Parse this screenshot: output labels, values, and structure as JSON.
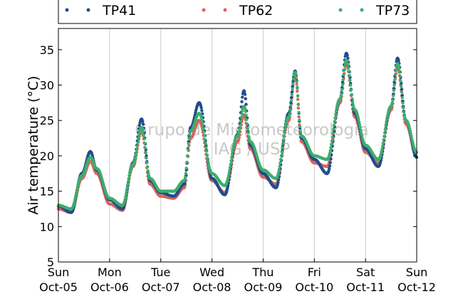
{
  "chart_data": {
    "type": "scatter",
    "title": "",
    "xlabel": "",
    "ylabel": "Air temperature (°C)",
    "ylim": [
      5,
      38
    ],
    "yticks": [
      5,
      10,
      15,
      20,
      25,
      30,
      35
    ],
    "xlim": [
      "2014-10-05T00:00",
      "2014-10-12T00:00"
    ],
    "xticks": [
      {
        "day": "Sun",
        "date": "Oct-05"
      },
      {
        "day": "Mon",
        "date": "Oct-06"
      },
      {
        "day": "Tue",
        "date": "Oct-07"
      },
      {
        "day": "Wed",
        "date": "Oct-08"
      },
      {
        "day": "Thu",
        "date": "Oct-09"
      },
      {
        "day": "Fri",
        "date": "Oct-10"
      },
      {
        "day": "Sat",
        "date": "Oct-11"
      },
      {
        "day": "Sun",
        "date": "Oct-12"
      }
    ],
    "grid": "vertical",
    "legend_placement": "top",
    "watermark": [
      "Grupo de Micrometeorologia",
      "IAG / USP"
    ],
    "series": [
      {
        "name": "TP41",
        "color": "#1f4e8c",
        "x": [
          "2014-10-05T00:00",
          "2014-10-05T06:00",
          "2014-10-05T11:00",
          "2014-10-05T15:00",
          "2014-10-05T18:00",
          "2014-10-06T00:00",
          "2014-10-06T06:00",
          "2014-10-06T11:00",
          "2014-10-06T15:00",
          "2014-10-06T19:00",
          "2014-10-07T00:00",
          "2014-10-07T06:00",
          "2014-10-07T11:00",
          "2014-10-07T14:00",
          "2014-10-07T18:00",
          "2014-10-08T00:00",
          "2014-10-08T06:00",
          "2014-10-08T12:00",
          "2014-10-08T15:00",
          "2014-10-08T18:00",
          "2014-10-09T00:00",
          "2014-10-09T06:00",
          "2014-10-09T12:00",
          "2014-10-09T15:00",
          "2014-10-09T18:00",
          "2014-10-10T00:00",
          "2014-10-10T06:00",
          "2014-10-10T12:00",
          "2014-10-10T15:00",
          "2014-10-10T19:00",
          "2014-10-11T00:00",
          "2014-10-11T06:00",
          "2014-10-11T12:00",
          "2014-10-11T15:00",
          "2014-10-11T19:00",
          "2014-10-12T00:00"
        ],
        "y": [
          12.9,
          12.0,
          17.5,
          20.6,
          18.0,
          13.8,
          12.5,
          19.0,
          25.2,
          16.5,
          14.8,
          14.3,
          16.0,
          24.0,
          27.5,
          16.8,
          14.5,
          23.0,
          29.2,
          21.5,
          17.5,
          15.5,
          26.0,
          32.0,
          22.5,
          19.5,
          17.5,
          28.0,
          34.5,
          26.0,
          21.0,
          18.5,
          27.0,
          33.8,
          25.0,
          19.8
        ]
      },
      {
        "name": "TP62",
        "color": "#d9645e",
        "x": [
          "2014-10-05T00:00",
          "2014-10-05T06:00",
          "2014-10-05T11:00",
          "2014-10-05T15:00",
          "2014-10-05T18:00",
          "2014-10-06T00:00",
          "2014-10-06T06:00",
          "2014-10-06T11:00",
          "2014-10-06T15:00",
          "2014-10-06T19:00",
          "2014-10-07T00:00",
          "2014-10-07T06:00",
          "2014-10-07T11:00",
          "2014-10-07T14:00",
          "2014-10-07T18:00",
          "2014-10-08T00:00",
          "2014-10-08T06:00",
          "2014-10-08T12:00",
          "2014-10-08T15:00",
          "2014-10-08T18:00",
          "2014-10-09T00:00",
          "2014-10-09T06:00",
          "2014-10-09T12:00",
          "2014-10-09T15:00",
          "2014-10-09T18:00",
          "2014-10-10T00:00",
          "2014-10-10T06:00",
          "2014-10-10T12:00",
          "2014-10-10T15:00",
          "2014-10-10T19:00",
          "2014-10-11T00:00",
          "2014-10-11T06:00",
          "2014-10-11T12:00",
          "2014-10-11T15:00",
          "2014-10-11T19:00",
          "2014-10-12T00:00"
        ],
        "y": [
          12.5,
          12.0,
          16.8,
          19.2,
          17.5,
          13.2,
          12.3,
          18.5,
          23.5,
          16.0,
          14.3,
          14.0,
          15.5,
          22.5,
          25.0,
          16.5,
          14.8,
          22.0,
          25.8,
          21.0,
          17.0,
          16.0,
          25.0,
          31.5,
          22.0,
          19.0,
          18.5,
          27.5,
          33.0,
          25.5,
          20.5,
          19.0,
          26.5,
          32.5,
          24.5,
          19.8
        ]
      },
      {
        "name": "TP73",
        "color": "#3dae6a",
        "x": [
          "2014-10-05T00:00",
          "2014-10-05T06:00",
          "2014-10-05T11:00",
          "2014-10-05T15:00",
          "2014-10-05T18:00",
          "2014-10-06T00:00",
          "2014-10-06T06:00",
          "2014-10-06T11:00",
          "2014-10-06T15:00",
          "2014-10-06T19:00",
          "2014-10-07T00:00",
          "2014-10-07T06:00",
          "2014-10-07T11:00",
          "2014-10-07T14:00",
          "2014-10-07T18:00",
          "2014-10-08T00:00",
          "2014-10-08T06:00",
          "2014-10-08T12:00",
          "2014-10-08T15:00",
          "2014-10-08T18:00",
          "2014-10-09T00:00",
          "2014-10-09T06:00",
          "2014-10-09T12:00",
          "2014-10-09T15:00",
          "2014-10-09T18:00",
          "2014-10-10T00:00",
          "2014-10-10T06:00",
          "2014-10-10T12:00",
          "2014-10-10T15:00",
          "2014-10-10T19:00",
          "2014-10-11T00:00",
          "2014-10-11T06:00",
          "2014-10-11T12:00",
          "2014-10-11T15:00",
          "2014-10-11T19:00",
          "2014-10-12T00:00"
        ],
        "y": [
          13.0,
          12.5,
          17.2,
          19.8,
          18.2,
          14.0,
          13.0,
          18.8,
          24.0,
          16.8,
          15.0,
          15.0,
          16.5,
          23.5,
          26.0,
          17.5,
          15.8,
          22.8,
          27.0,
          22.0,
          18.0,
          16.8,
          25.5,
          31.8,
          22.8,
          20.0,
          19.5,
          28.0,
          33.5,
          26.5,
          21.5,
          19.5,
          27.0,
          33.0,
          25.0,
          20.5
        ]
      }
    ]
  }
}
